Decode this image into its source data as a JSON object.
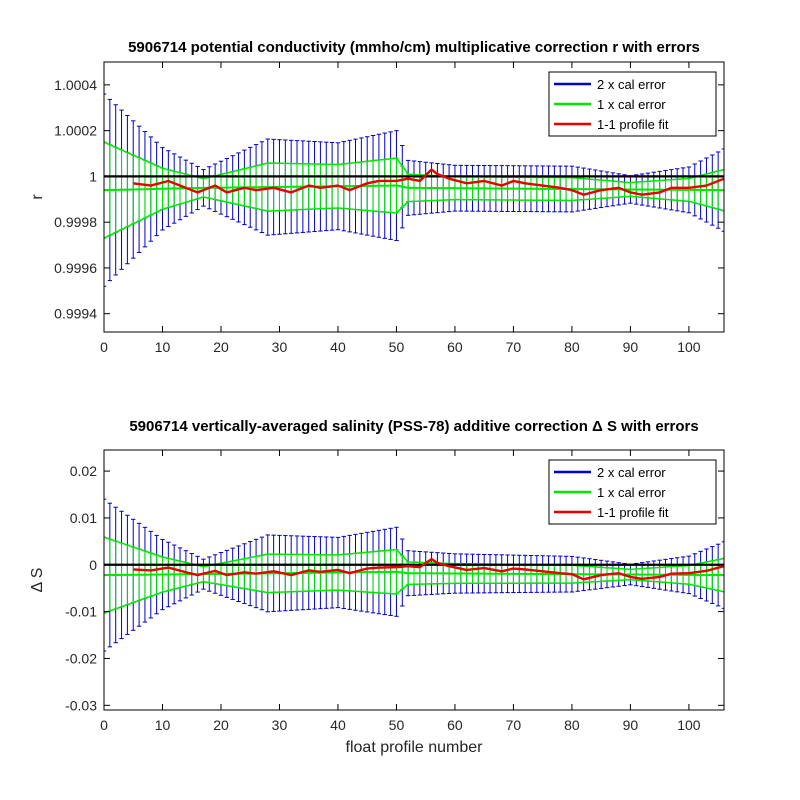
{
  "chart_data": [
    {
      "type": "line",
      "title": "5906714 potential conductivity (mmho/cm) multiplicative correction r with errors",
      "xlabel": "",
      "ylabel": "r",
      "xlim": [
        0,
        106
      ],
      "ylim": [
        0.99932,
        1.0005
      ],
      "xticks": [
        0,
        10,
        20,
        30,
        40,
        50,
        60,
        70,
        80,
        90,
        100
      ],
      "yticks": [
        0.9994,
        0.9996,
        0.9998,
        1,
        1.0002,
        1.0004
      ],
      "ytick_labels": [
        "0.9994",
        "0.9996",
        "0.9998",
        "1",
        "1.0002",
        "1.0004"
      ],
      "reference_line": 1,
      "legend_position": "top-right",
      "series": [
        {
          "name": "2 x cal error",
          "color": "#0000c8",
          "kind": "errorbar",
          "x_start": 0,
          "x_end": 106,
          "center_x": [
            0,
            17,
            50,
            52,
            106
          ],
          "center_y": [
            0.99994,
            0.99995,
            0.99996,
            0.99995,
            0.99994
          ],
          "half_x": [
            0,
            10,
            17,
            28,
            40,
            50,
            52,
            60,
            70,
            80,
            90,
            100,
            106
          ],
          "half_width": [
            0.00042,
            0.00018,
            8e-05,
            0.00021,
            0.00019,
            0.00024,
            0.00012,
            0.0001,
            0.0001,
            0.0001,
            6e-05,
            0.0001,
            0.00018
          ]
        },
        {
          "name": "1 x cal error",
          "color": "#00e600",
          "kind": "errorbar",
          "x_start": 0,
          "x_end": 106,
          "center_x": [
            0,
            17,
            50,
            52,
            106
          ],
          "center_y": [
            0.99994,
            0.99995,
            0.99996,
            0.99995,
            0.99994
          ],
          "half_x": [
            0,
            10,
            17,
            28,
            40,
            50,
            52,
            60,
            70,
            80,
            90,
            100,
            106
          ],
          "half_width": [
            0.00021,
            9e-05,
            4e-05,
            0.000105,
            9.5e-05,
            0.00012,
            6e-05,
            5e-05,
            5e-05,
            5e-05,
            3e-05,
            5e-05,
            9e-05
          ]
        },
        {
          "name": "1-1 profile fit",
          "color": "#e60000",
          "kind": "line",
          "x": [
            5,
            8,
            11,
            14,
            16,
            19,
            21,
            24,
            26,
            29,
            32,
            35,
            37,
            40,
            42,
            45,
            47,
            50,
            52,
            54,
            56,
            57,
            59,
            62,
            65,
            68,
            70,
            72,
            75,
            78,
            80,
            82,
            85,
            88,
            90,
            92,
            95,
            97,
            100,
            103,
            106
          ],
          "y": [
            0.99997,
            0.99996,
            0.99998,
            0.99995,
            0.99993,
            0.99996,
            0.99993,
            0.99995,
            0.99994,
            0.99995,
            0.99993,
            0.99996,
            0.99995,
            0.99996,
            0.99994,
            0.99997,
            0.99998,
            0.99998,
            0.99999,
            0.99998,
            1.00003,
            1.00001,
            0.99999,
            0.99997,
            0.99998,
            0.99996,
            0.99998,
            0.99997,
            0.99996,
            0.99995,
            0.99994,
            0.99992,
            0.99994,
            0.99995,
            0.99993,
            0.99992,
            0.99993,
            0.99995,
            0.99995,
            0.99996,
            0.99999
          ]
        }
      ]
    },
    {
      "type": "line",
      "title": "5906714 vertically-averaged salinity (PSS-78) additive correction Δ S with errors",
      "xlabel": "float profile number",
      "ylabel": "Δ S",
      "xlim": [
        0,
        106
      ],
      "ylim": [
        -0.031,
        0.0245
      ],
      "xticks": [
        0,
        10,
        20,
        30,
        40,
        50,
        60,
        70,
        80,
        90,
        100
      ],
      "yticks": [
        -0.03,
        -0.02,
        -0.01,
        0,
        0.01,
        0.02
      ],
      "ytick_labels": [
        "-0.03",
        "-0.02",
        "-0.01",
        "0",
        "0.01",
        "0.02"
      ],
      "reference_line": 0,
      "legend_position": "top-right",
      "series": [
        {
          "name": "2 x cal error",
          "color": "#0000c8",
          "kind": "errorbar",
          "x_start": 0,
          "x_end": 106,
          "center_x": [
            0,
            17,
            50,
            52,
            106
          ],
          "center_y": [
            -0.0022,
            -0.002,
            -0.0015,
            -0.0018,
            -0.0022
          ],
          "half_x": [
            0,
            10,
            17,
            28,
            40,
            50,
            52,
            60,
            70,
            80,
            90,
            100,
            106
          ],
          "half_width": [
            0.0162,
            0.0075,
            0.0032,
            0.0082,
            0.0075,
            0.0095,
            0.0048,
            0.0042,
            0.004,
            0.0038,
            0.0022,
            0.004,
            0.0071
          ]
        },
        {
          "name": "1 x cal error",
          "color": "#00e600",
          "kind": "errorbar",
          "x_start": 0,
          "x_end": 106,
          "center_x": [
            0,
            17,
            50,
            52,
            106
          ],
          "center_y": [
            -0.0022,
            -0.002,
            -0.0015,
            -0.0018,
            -0.0022
          ],
          "half_x": [
            0,
            10,
            17,
            28,
            40,
            50,
            52,
            60,
            70,
            80,
            90,
            100,
            106
          ],
          "half_width": [
            0.0081,
            0.00375,
            0.0016,
            0.0041,
            0.00375,
            0.00475,
            0.0024,
            0.0021,
            0.002,
            0.0019,
            0.0011,
            0.002,
            0.00355
          ]
        },
        {
          "name": "1-1 profile fit",
          "color": "#e60000",
          "kind": "line",
          "x": [
            5,
            8,
            11,
            14,
            16,
            19,
            21,
            24,
            26,
            29,
            32,
            35,
            37,
            40,
            42,
            45,
            47,
            50,
            52,
            54,
            56,
            57,
            59,
            62,
            65,
            68,
            70,
            72,
            75,
            78,
            80,
            82,
            85,
            88,
            90,
            92,
            95,
            97,
            100,
            103,
            106
          ],
          "y": [
            -0.001,
            -0.0012,
            -0.0006,
            -0.0016,
            -0.0022,
            -0.0013,
            -0.0022,
            -0.0016,
            -0.0019,
            -0.0014,
            -0.0022,
            -0.0012,
            -0.0015,
            -0.0011,
            -0.0018,
            -0.0008,
            -0.0006,
            -0.0005,
            -0.0003,
            -0.0005,
            0.0012,
            0.0004,
            -0.0003,
            -0.0011,
            -0.0007,
            -0.0014,
            -0.0008,
            -0.001,
            -0.0014,
            -0.0018,
            -0.002,
            -0.0031,
            -0.0022,
            -0.0018,
            -0.0026,
            -0.003,
            -0.0026,
            -0.0019,
            -0.0018,
            -0.0013,
            -0.0003
          ]
        }
      ]
    }
  ]
}
